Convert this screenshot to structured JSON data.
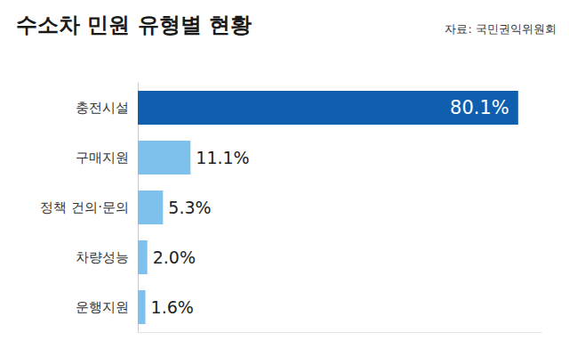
{
  "chart_data": {
    "type": "bar",
    "title": "수소차 민원 유형별 현황",
    "annotations": [
      "자료: 국민권익위원회"
    ],
    "orientation": "horizontal",
    "categories": [
      "충전시설",
      "구매지원",
      "정책 건의·문의",
      "차량성능",
      "운행지원"
    ],
    "values": [
      80.1,
      11.1,
      5.3,
      2.0,
      1.6
    ],
    "value_labels": [
      "80.1%",
      "11.1%",
      "5.3%",
      "2.0%",
      "1.6%"
    ],
    "colors": [
      "#0f5fae",
      "#7dc1ec",
      "#7dc1ec",
      "#7dc1ec",
      "#7dc1ec"
    ],
    "xlim": [
      0,
      85
    ],
    "grid": false,
    "data_labels": true,
    "tick_labels": "y"
  }
}
